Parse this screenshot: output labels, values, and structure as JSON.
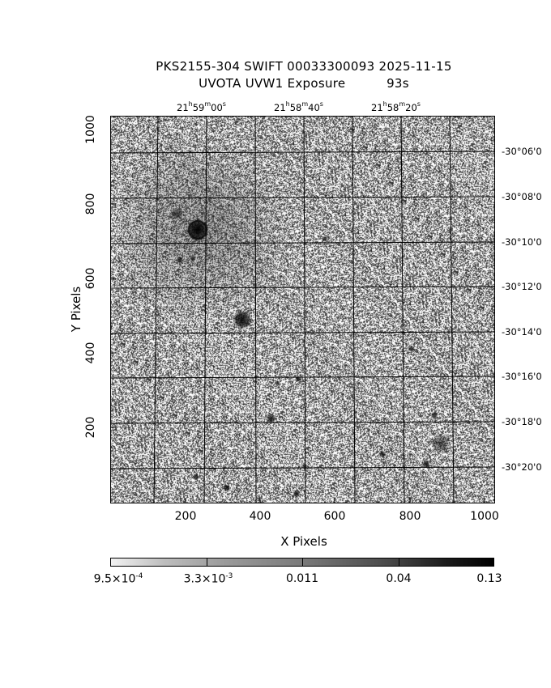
{
  "title": {
    "line1": "PKS2155-304 SWIFT 00033300093 2025-11-15",
    "line2": "UVOTA UVW1 Exposure          93s"
  },
  "axes": {
    "xlabel": "X Pixels",
    "ylabel": "Y Pixels",
    "x_ticks": [
      "200",
      "400",
      "600",
      "800",
      "1000"
    ],
    "y_ticks": [
      "200",
      "400",
      "600",
      "800",
      "1000"
    ],
    "ra_ticks": [
      {
        "h": "21",
        "m": "59",
        "s": "00"
      },
      {
        "h": "21",
        "m": "58",
        "s": "40"
      },
      {
        "h": "21",
        "m": "58",
        "s": "20"
      }
    ],
    "dec_ticks": [
      "-30°06'0",
      "-30°08'0",
      "-30°10'0",
      "-30°12'0",
      "-30°14'0",
      "-30°16'0",
      "-30°18'0",
      "-30°20'0"
    ]
  },
  "colorbar": {
    "labels": [
      {
        "mantissa": "9.5×10",
        "exp": "-4"
      },
      {
        "mantissa": "3.3×10",
        "exp": "-3"
      },
      {
        "mantissa": "0.011",
        "exp": ""
      },
      {
        "mantissa": "0.04",
        "exp": ""
      },
      {
        "mantissa": "0.13",
        "exp": ""
      }
    ]
  },
  "image": {
    "colormap": "greyscale",
    "background_color": "#ffffff",
    "frame_color": "#000000"
  }
}
